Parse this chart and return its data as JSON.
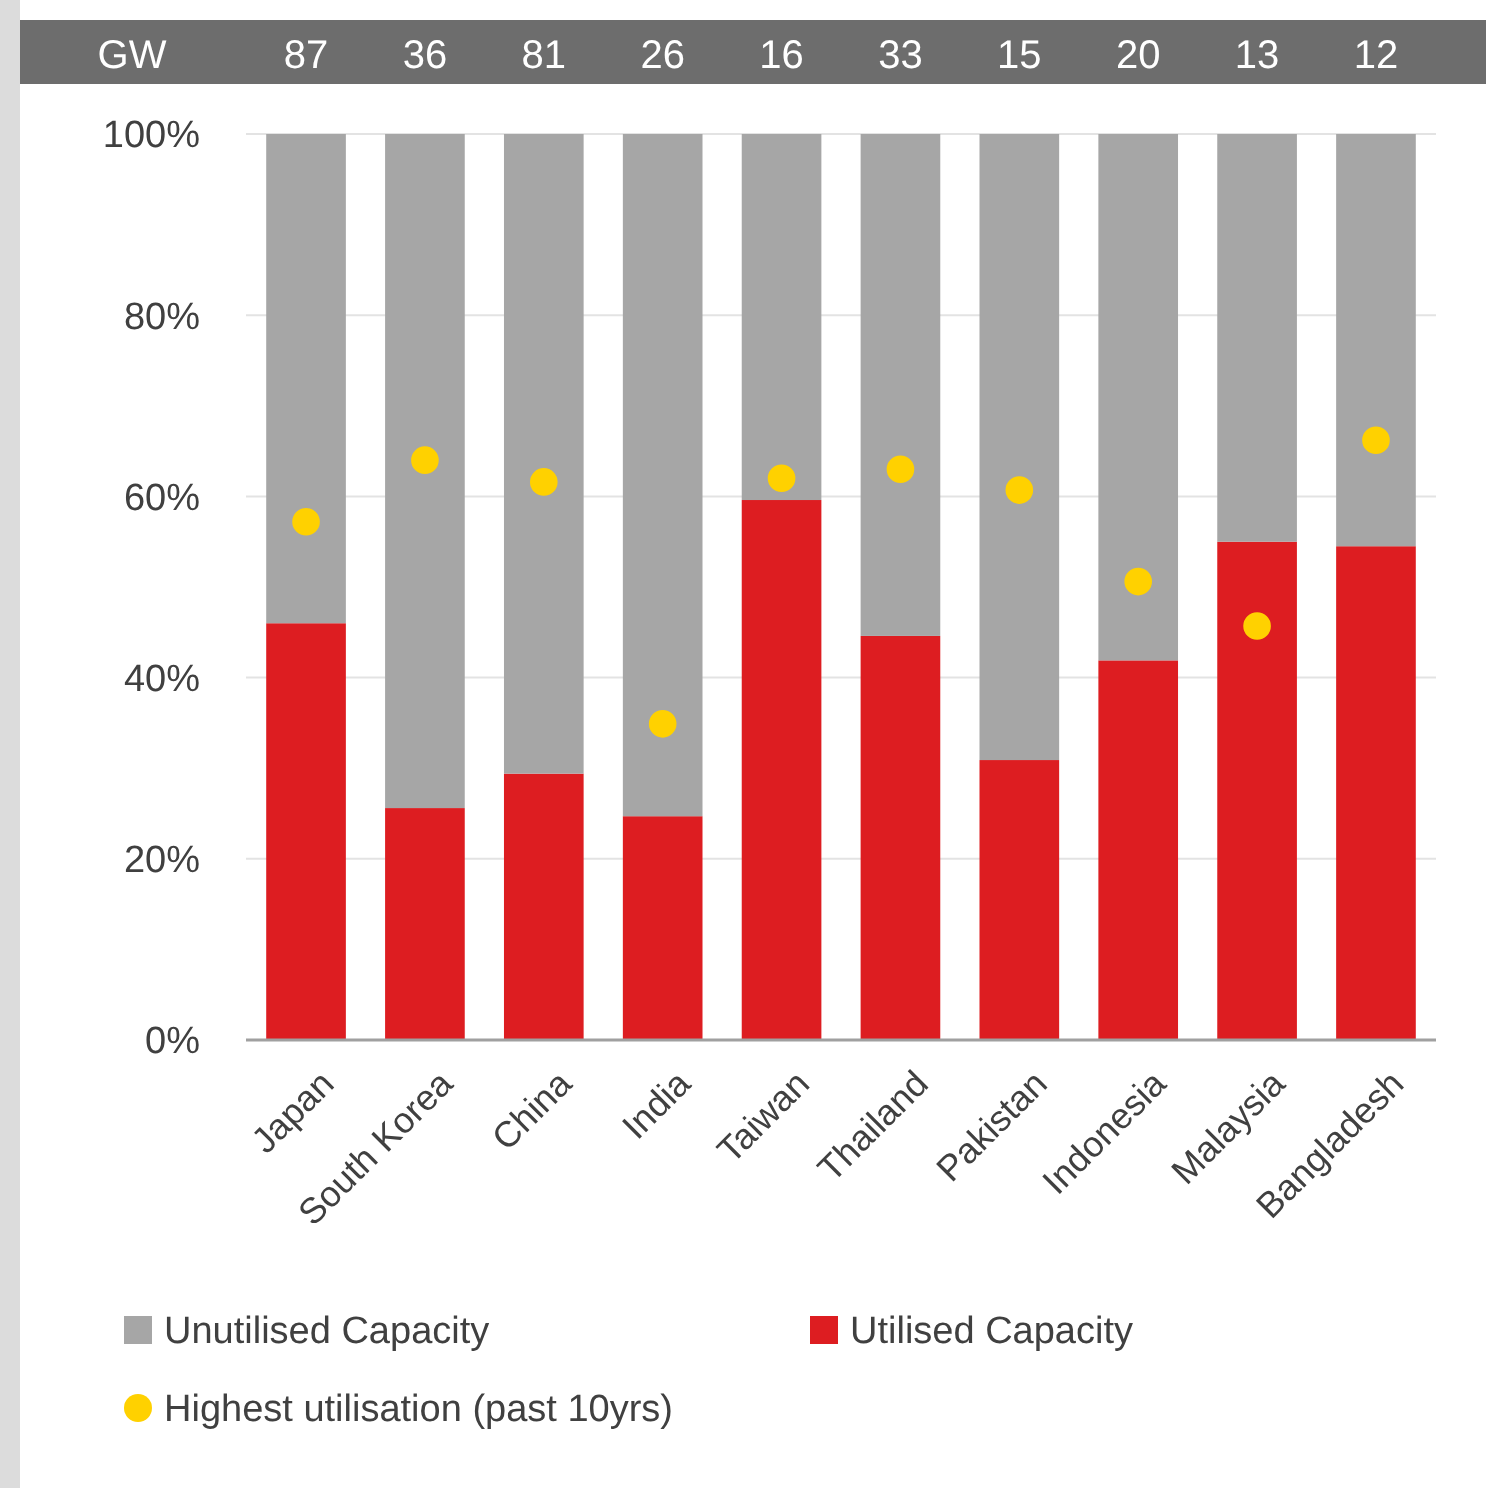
{
  "chart_data": {
    "type": "bar",
    "stacked": true,
    "categories": [
      "Japan",
      "South Korea",
      "China",
      "India",
      "Taiwan",
      "Thailand",
      "Pakistan",
      "Indonesia",
      "Malaysia",
      "Bangladesh"
    ],
    "series": [
      {
        "name": "Utilised Capacity",
        "color": "#dd1d21",
        "values": [
          46,
          25.6,
          29.4,
          24.7,
          59.6,
          44.6,
          30.9,
          41.9,
          55,
          54.5
        ]
      },
      {
        "name": "Unutilised Capacity",
        "color": "#a6a6a6",
        "values": [
          54,
          74.4,
          70.6,
          75.3,
          40.4,
          55.4,
          69.1,
          58.1,
          45,
          45.5
        ]
      },
      {
        "name": "Highest utilisation (past 10yrs)",
        "type": "scatter",
        "color": "#ffd100",
        "x": [
          "Japan",
          "South Korea",
          "China",
          "India",
          "Taiwan",
          "Thailand",
          "Pakistan",
          "Indonesia",
          "Malaysia",
          "Bangladesh"
        ],
        "values": [
          57.2,
          64,
          61.6,
          34.9,
          62,
          63,
          60.7,
          50.6,
          45.7,
          66.2
        ]
      }
    ],
    "ylim": [
      0,
      100
    ],
    "yticks": [
      {
        "value": 0,
        "label": "0%"
      },
      {
        "value": 20,
        "label": "20%"
      },
      {
        "value": 40,
        "label": "40%"
      },
      {
        "value": 60,
        "label": "60%"
      },
      {
        "value": 80,
        "label": "80%"
      },
      {
        "value": 100,
        "label": "100%"
      }
    ],
    "grid": "y",
    "legend": "bottom",
    "marker": "circle",
    "annotations": [
      "GW",
      "87",
      "36",
      "81",
      "26",
      "16",
      "33",
      "15",
      "20",
      "13",
      "12"
    ]
  }
}
